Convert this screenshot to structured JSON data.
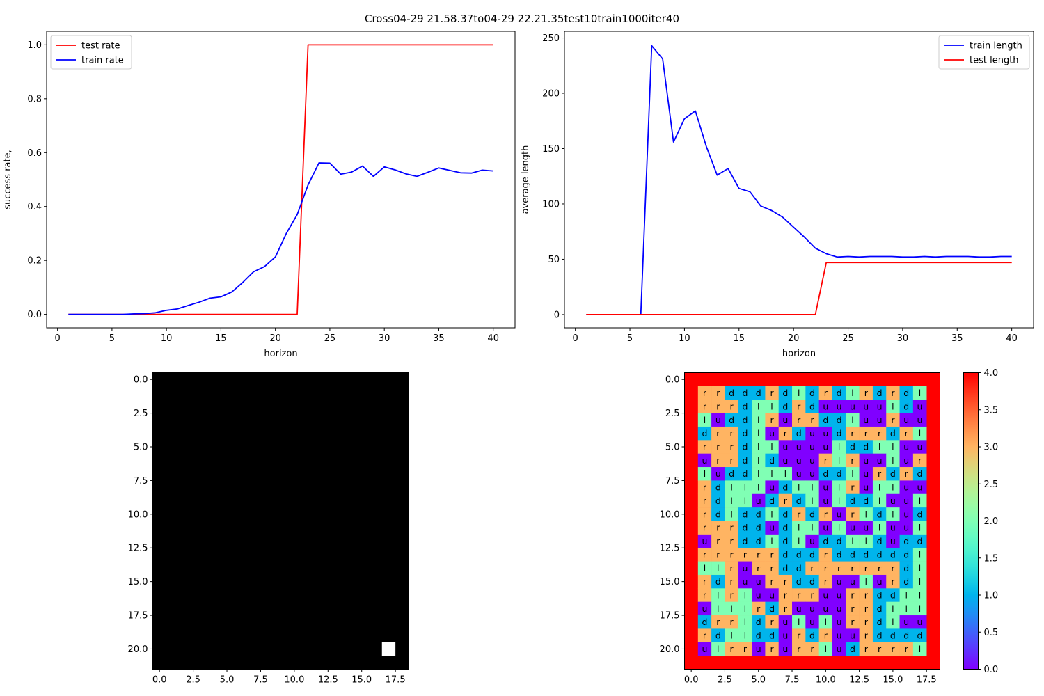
{
  "figure": {
    "title": "Cross04-29 21.58.37to04-29 22.21.35test10train1000iter40"
  },
  "chart_data": [
    {
      "id": "success",
      "type": "line",
      "xlabel": "horizon",
      "ylabel": "success rate,",
      "xlim": [
        -1,
        42
      ],
      "ylim": [
        -0.05,
        1.05
      ],
      "xticks": [
        0,
        5,
        10,
        15,
        20,
        25,
        30,
        35,
        40
      ],
      "yticks": [
        0.0,
        0.2,
        0.4,
        0.6,
        0.8,
        1.0
      ],
      "legend_position": "upper-left",
      "x": [
        1,
        2,
        3,
        4,
        5,
        6,
        7,
        8,
        9,
        10,
        11,
        12,
        13,
        14,
        15,
        16,
        17,
        18,
        19,
        20,
        21,
        22,
        23,
        24,
        25,
        26,
        27,
        28,
        29,
        30,
        31,
        32,
        33,
        34,
        35,
        36,
        37,
        38,
        39,
        40
      ],
      "series": [
        {
          "name": "test rate",
          "color": "#ff0000",
          "values": [
            0,
            0,
            0,
            0,
            0,
            0,
            0,
            0,
            0,
            0,
            0,
            0,
            0,
            0,
            0,
            0,
            0,
            0,
            0,
            0,
            0,
            0,
            1,
            1,
            1,
            1,
            1,
            1,
            1,
            1,
            1,
            1,
            1,
            1,
            1,
            1,
            1,
            1,
            1,
            1
          ]
        },
        {
          "name": "train rate",
          "color": "#0000ff",
          "values": [
            0,
            0,
            0,
            0,
            0,
            0,
            0.002,
            0.003,
            0.006,
            0.015,
            0.02,
            0.033,
            0.045,
            0.06,
            0.065,
            0.083,
            0.118,
            0.158,
            0.177,
            0.213,
            0.3,
            0.37,
            0.48,
            0.562,
            0.561,
            0.52,
            0.528,
            0.55,
            0.512,
            0.547,
            0.536,
            0.521,
            0.512,
            0.527,
            0.543,
            0.534,
            0.525,
            0.524,
            0.535,
            0.532
          ]
        }
      ]
    },
    {
      "id": "length",
      "type": "line",
      "xlabel": "horizon",
      "ylabel": "average length",
      "xlim": [
        -1,
        42
      ],
      "ylim": [
        -12,
        256
      ],
      "xticks": [
        0,
        5,
        10,
        15,
        20,
        25,
        30,
        35,
        40
      ],
      "yticks": [
        0,
        50,
        100,
        150,
        200,
        250
      ],
      "legend_position": "upper-right",
      "x": [
        1,
        2,
        3,
        4,
        5,
        6,
        7,
        8,
        9,
        10,
        11,
        12,
        13,
        14,
        15,
        16,
        17,
        18,
        19,
        20,
        21,
        22,
        23,
        24,
        25,
        26,
        27,
        28,
        29,
        30,
        31,
        32,
        33,
        34,
        35,
        36,
        37,
        38,
        39,
        40
      ],
      "series": [
        {
          "name": "train length",
          "color": "#0000ff",
          "values": [
            0,
            0,
            0,
            0,
            0,
            0,
            243,
            231,
            156,
            177,
            184,
            152,
            126,
            132,
            114,
            111,
            98,
            94,
            88,
            79,
            70,
            60,
            55,
            52,
            52.5,
            52,
            52.5,
            52.5,
            52.5,
            52,
            52,
            52.5,
            52,
            52.5,
            52.5,
            52.5,
            52,
            52,
            52.5,
            52.5
          ]
        },
        {
          "name": "test length",
          "color": "#ff0000",
          "values": [
            0,
            0,
            0,
            0,
            0,
            0,
            0,
            0,
            0,
            0,
            0,
            0,
            0,
            0,
            0,
            0,
            0,
            0,
            0,
            0,
            0,
            0,
            47,
            47,
            47,
            47,
            47,
            47,
            47,
            47,
            47,
            47,
            47,
            47,
            47,
            47,
            47,
            47,
            47,
            47
          ]
        }
      ]
    },
    {
      "id": "mask",
      "type": "heatmap",
      "rows": 22,
      "cols": 19,
      "xticks": [
        0.0,
        2.5,
        5.0,
        7.5,
        10.0,
        12.5,
        15.0,
        17.5
      ],
      "yticks": [
        0.0,
        2.5,
        5.0,
        7.5,
        10.0,
        12.5,
        15.0,
        17.5,
        20.0
      ],
      "xtick_labels": [
        "0.0",
        "2.5",
        "5.0",
        "7.5",
        "10.0",
        "12.5",
        "15.0",
        "17.5"
      ],
      "ytick_labels": [
        "0.0",
        "2.5",
        "5.0",
        "7.5",
        "10.0",
        "12.5",
        "15.0",
        "17.5",
        "20.0"
      ],
      "background": "#000000",
      "highlight": {
        "row": 20,
        "col": 17,
        "color": "#ffffff"
      }
    },
    {
      "id": "policy",
      "type": "heatmap",
      "rows": 22,
      "cols": 19,
      "border_value": 4,
      "xticks": [
        0.0,
        2.5,
        5.0,
        7.5,
        10.0,
        12.5,
        15.0,
        17.5
      ],
      "yticks": [
        0.0,
        2.5,
        5.0,
        7.5,
        10.0,
        12.5,
        15.0,
        17.5,
        20.0
      ],
      "xtick_labels": [
        "0.0",
        "2.5",
        "5.0",
        "7.5",
        "10.0",
        "12.5",
        "15.0",
        "17.5"
      ],
      "ytick_labels": [
        "0.0",
        "2.5",
        "5.0",
        "7.5",
        "10.0",
        "12.5",
        "15.0",
        "17.5",
        "20.0"
      ],
      "value_map": {
        "u": 0,
        "d": 1,
        "l": 2,
        "r": 3
      },
      "colorbar": {
        "vmin": 0.0,
        "vmax": 4.0,
        "ticks": [
          0.0,
          0.5,
          1.0,
          1.5,
          2.0,
          2.5,
          3.0,
          3.5,
          4.0
        ],
        "tick_labels": [
          "0.0",
          "0.5",
          "1.0",
          "1.5",
          "2.0",
          "2.5",
          "3.0",
          "3.5",
          "4.0"
        ]
      },
      "grid": [
        "rrdddrdldrdlrdrdl",
        "rrrdlldrduuuuuldu",
        "ludduruurrddluuruu",
        "drrdlurduudrrrdrl",
        "rrrdlluuuuuldd lluu",
        "urrdlduuuurlruulur",
        "luddlllluudd lurdrd",
        "rdlllludlluluulluu",
        "rdllludrdluldd luul",
        "rdldd ldrdrurldlud",
        "rrrddudlluluulul",
        "urrdd ldluddlldudd",
        "rrrrrrdddrdddddd l",
        "lllruurrdd rrrrrrdl",
        "rdruurrddruulurdl",
        "rllluurrruurrddll",
        "ullllrdruuuurrdlll",
        "drrlldrululurrdluu",
        "rdlllddurdruurdddd",
        "ulrrurrurrludrrrrl"
      ],
      "rows_cells": [
        [
          "r",
          "r",
          "d",
          "d",
          "d",
          "r",
          "d",
          "l",
          "d",
          "r",
          "d",
          "l",
          "r",
          "d",
          "r",
          "d",
          "l"
        ],
        [
          "r",
          "r",
          "r",
          "d",
          "l",
          "l",
          "d",
          "r",
          "d",
          "u",
          "u",
          "u",
          "u",
          "u",
          "l",
          "d",
          "u"
        ],
        [
          "l",
          "u",
          "d",
          "d",
          "l",
          "r",
          "u",
          "r",
          "r",
          "d",
          "d",
          "l",
          "u",
          "u",
          "r",
          "u",
          "u"
        ],
        [
          "d",
          "r",
          "r",
          "d",
          "l",
          "u",
          "r",
          "d",
          "u",
          "u",
          "d",
          "r",
          "r",
          "r",
          "d",
          "r",
          "l"
        ],
        [
          "r",
          "r",
          "r",
          "d",
          "l",
          "l",
          "u",
          "u",
          "u",
          "u",
          "l",
          "d",
          "d",
          "l",
          "l",
          "u",
          "u"
        ],
        [
          "u",
          "r",
          "r",
          "d",
          "l",
          "d",
          "u",
          "u",
          "u",
          "r",
          "l",
          "r",
          "u",
          "u",
          "l",
          "u",
          "r"
        ],
        [
          "l",
          "u",
          "d",
          "d",
          "l",
          "l",
          "l",
          "u",
          "u",
          "d",
          "d",
          "l",
          "u",
          "r",
          "d",
          "r",
          "d"
        ],
        [
          "r",
          "d",
          "l",
          "l",
          "l",
          "u",
          "d",
          "l",
          "l",
          "u",
          "l",
          "r",
          "u",
          "l",
          "l",
          "u",
          "u"
        ],
        [
          "r",
          "d",
          "l",
          "l",
          "u",
          "d",
          "r",
          "d",
          "l",
          "u",
          "l",
          "d",
          "d",
          "l",
          "u",
          "u",
          "l"
        ],
        [
          "r",
          "d",
          "l",
          "d",
          "d",
          "l",
          "d",
          "r",
          "d",
          "r",
          "u",
          "r",
          "l",
          "d",
          "l",
          "u",
          "d"
        ],
        [
          "r",
          "r",
          "r",
          "d",
          "d",
          "u",
          "d",
          "l",
          "l",
          "u",
          "l",
          "u",
          "u",
          "l",
          "u",
          "u",
          "l"
        ],
        [
          "u",
          "r",
          "r",
          "d",
          "d",
          "l",
          "d",
          "l",
          "u",
          "d",
          "d",
          "l",
          "l",
          "d",
          "u",
          "d",
          "d"
        ],
        [
          "r",
          "r",
          "r",
          "r",
          "r",
          "r",
          "d",
          "d",
          "d",
          "r",
          "d",
          "d",
          "d",
          "d",
          "d",
          "d",
          "l"
        ],
        [
          "l",
          "l",
          "r",
          "u",
          "r",
          "r",
          "d",
          "d",
          "r",
          "r",
          "r",
          "r",
          "r",
          "r",
          "r",
          "d",
          "l"
        ],
        [
          "r",
          "d",
          "r",
          "u",
          "u",
          "r",
          "r",
          "d",
          "d",
          "r",
          "u",
          "u",
          "l",
          "u",
          "r",
          "d",
          "l"
        ],
        [
          "r",
          "l",
          "r",
          "l",
          "u",
          "u",
          "r",
          "r",
          "r",
          "u",
          "u",
          "r",
          "r",
          "d",
          "d",
          "l",
          "l"
        ],
        [
          "u",
          "l",
          "l",
          "l",
          "r",
          "d",
          "r",
          "u",
          "u",
          "u",
          "u",
          "r",
          "r",
          "d",
          "l",
          "l",
          "l"
        ],
        [
          "d",
          "r",
          "r",
          "l",
          "d",
          "r",
          "u",
          "l",
          "u",
          "l",
          "u",
          "r",
          "r",
          "d",
          "l",
          "u",
          "u"
        ],
        [
          "r",
          "d",
          "l",
          "l",
          "d",
          "d",
          "u",
          "r",
          "d",
          "r",
          "u",
          "u",
          "r",
          "d",
          "d",
          "d",
          "d"
        ],
        [
          "u",
          "l",
          "r",
          "r",
          "u",
          "r",
          "u",
          "r",
          "r",
          "l",
          "u",
          "d",
          "r",
          "r",
          "r",
          "r",
          "l"
        ]
      ]
    }
  ]
}
